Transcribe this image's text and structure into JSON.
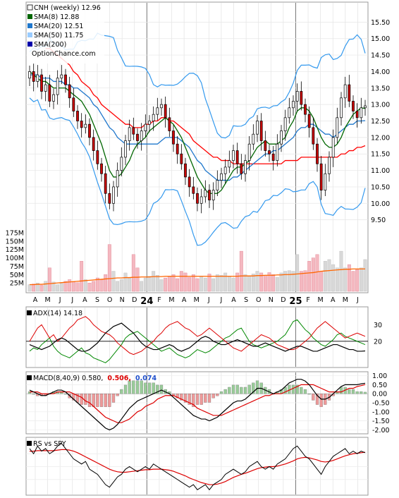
{
  "legend": {
    "symbol": "CNH (weekly) 12.96",
    "sma8": "SMA(8) 12.88",
    "sma20": "SMA(20) 12.51",
    "sma50": "SMA(50) 11.75",
    "sma200": "SMA(200)",
    "site": "OptionChance.com"
  },
  "adx_label": "ADX(14) 14.18",
  "macd_label": "MACD(8,40,9) 0.580,",
  "macd_val1": "0.506,",
  "macd_val2": "0.074",
  "rs_label": "RS vs SPY",
  "colors": {
    "up": "#ffffff",
    "down": "#cc0000",
    "sma8": "#006600",
    "sma20": "#1f77cc",
    "sma50": "#ff0000",
    "bband": "#3399ee",
    "ma_vol": "#ff6600",
    "vol_up": "#d8d8d8",
    "vol_down": "#f4b8c0",
    "adx": "#000000",
    "pdi": "#008800",
    "mdi": "#dd0000",
    "macd": "#000000",
    "signal": "#dd0000",
    "hist_pos": "#99cc99",
    "hist_neg": "#ee9999",
    "rs": "#000000",
    "rs_ma": "#dd0000",
    "label_red": "#dd0000",
    "label_blue": "#1f4fcc"
  },
  "chart_data": [
    {
      "type": "candlestick",
      "title": "CNH (weekly) 12.96",
      "ylim": [
        9.0,
        16.0
      ],
      "y_ticks": [
        "15.50",
        "15.00",
        "14.50",
        "14.00",
        "13.50",
        "13.00",
        "12.50",
        "12.00",
        "11.50",
        "11.00",
        "10.50",
        "10.00",
        "9.50"
      ],
      "x_tick_labels": [
        "A",
        "M",
        "J",
        "J",
        "A",
        "S",
        "O",
        "N",
        "D",
        "24",
        "F",
        "M",
        "A",
        "M",
        "J",
        "J",
        "A",
        "S",
        "O",
        "N",
        "D",
        "25",
        "F",
        "M",
        "A",
        "M",
        "J"
      ],
      "close": [
        14.0,
        13.7,
        13.9,
        13.4,
        13.6,
        13.1,
        13.3,
        13.8,
        13.9,
        13.6,
        13.2,
        12.8,
        12.5,
        12.3,
        12.4,
        12.0,
        11.6,
        11.2,
        10.9,
        10.3,
        10.0,
        10.5,
        11.0,
        11.4,
        11.9,
        12.3,
        12.1,
        11.9,
        12.2,
        12.4,
        12.5,
        12.7,
        12.9,
        13.0,
        12.6,
        12.2,
        11.8,
        11.5,
        11.2,
        10.8,
        10.5,
        10.3,
        10.0,
        10.2,
        10.4,
        10.1,
        10.4,
        10.7,
        10.9,
        11.1,
        11.3,
        11.6,
        11.2,
        10.9,
        11.3,
        11.8,
        12.1,
        12.5,
        11.9,
        11.6,
        11.5,
        11.3,
        11.8,
        12.2,
        12.6,
        12.9,
        13.1,
        13.4,
        13.0,
        12.7,
        12.3,
        11.8,
        11.2,
        10.4,
        10.9,
        11.4,
        12.0,
        12.6,
        13.2,
        13.6,
        13.1,
        12.8,
        12.6,
        12.9,
        12.96
      ],
      "sma8": [
        14.0,
        13.9,
        13.8,
        13.7,
        13.7,
        13.6,
        13.5,
        13.5,
        13.5,
        13.5,
        13.4,
        13.3,
        13.2,
        13.1,
        12.9,
        12.7,
        12.4,
        12.1,
        11.8,
        11.4,
        11.0,
        10.8,
        10.8,
        10.9,
        11.1,
        11.3,
        11.6,
        11.8,
        11.9,
        12.0,
        12.2,
        12.3,
        12.4,
        12.5,
        12.6,
        12.5,
        12.4,
        12.2,
        12.0,
        11.7,
        11.4,
        11.1,
        10.8,
        10.6,
        10.4,
        10.3,
        10.3,
        10.3,
        10.4,
        10.6,
        10.8,
        11.0,
        11.1,
        11.1,
        11.2,
        11.3,
        11.5,
        11.7,
        11.8,
        11.9,
        11.8,
        11.8,
        11.8,
        11.9,
        12.0,
        12.3,
        12.5,
        12.8,
        12.9,
        12.9,
        12.8,
        12.6,
        12.3,
        12.0,
        11.8,
        11.7,
        11.7,
        11.8,
        12.0,
        12.3,
        12.5,
        12.7,
        12.8,
        12.9,
        12.88
      ],
      "sma20": [
        13.9,
        13.9,
        13.9,
        13.8,
        13.8,
        13.8,
        13.7,
        13.7,
        13.7,
        13.6,
        13.6,
        13.5,
        13.5,
        13.4,
        13.3,
        13.2,
        13.0,
        12.9,
        12.7,
        12.5,
        12.3,
        12.2,
        12.0,
        11.9,
        11.8,
        11.8,
        11.8,
        11.8,
        11.8,
        11.8,
        11.8,
        11.8,
        11.8,
        11.9,
        12.0,
        12.0,
        12.0,
        12.0,
        11.9,
        11.8,
        11.7,
        11.5,
        11.3,
        11.2,
        11.0,
        10.9,
        10.8,
        10.7,
        10.7,
        10.7,
        10.7,
        10.8,
        10.8,
        10.9,
        11.0,
        11.1,
        11.2,
        11.3,
        11.4,
        11.5,
        11.5,
        11.6,
        11.6,
        11.7,
        11.8,
        11.9,
        12.0,
        12.2,
        12.3,
        12.3,
        12.4,
        12.4,
        12.3,
        12.2,
        12.1,
        12.1,
        12.0,
        12.1,
        12.2,
        12.3,
        12.4,
        12.4,
        12.5,
        12.5,
        12.51
      ],
      "sma50": [
        null,
        null,
        null,
        null,
        14.7,
        14.7,
        14.6,
        14.5,
        14.4,
        14.3,
        14.2,
        14.0,
        13.9,
        13.7,
        13.6,
        13.5,
        13.3,
        13.2,
        13.0,
        12.9,
        12.8,
        12.7,
        12.6,
        12.5,
        12.4,
        12.4,
        12.3,
        12.3,
        12.3,
        12.4,
        12.4,
        12.5,
        12.5,
        12.6,
        12.6,
        12.5,
        12.5,
        12.4,
        12.3,
        12.2,
        12.1,
        11.9,
        11.8,
        11.7,
        11.6,
        11.5,
        11.4,
        11.4,
        11.3,
        11.3,
        11.3,
        11.2,
        11.2,
        11.2,
        11.2,
        11.2,
        11.2,
        11.2,
        11.2,
        11.2,
        11.2,
        11.2,
        11.2,
        11.2,
        11.3,
        11.3,
        11.3,
        11.3,
        11.4,
        11.4,
        11.4,
        11.4,
        11.4,
        11.4,
        11.4,
        11.4,
        11.4,
        11.4,
        11.5,
        11.5,
        11.6,
        11.6,
        11.7,
        11.7,
        11.75
      ]
    },
    {
      "type": "bar",
      "title": "Volume",
      "ylim": [
        0,
        175
      ],
      "y_ticks": [
        "175M",
        "150M",
        "125M",
        "100M",
        "75M",
        "50M",
        "25M"
      ],
      "volume": [
        20,
        22,
        25,
        18,
        30,
        70,
        28,
        20,
        24,
        30,
        35,
        28,
        26,
        90,
        35,
        25,
        30,
        40,
        35,
        50,
        140,
        60,
        30,
        35,
        55,
        40,
        110,
        70,
        30,
        40,
        45,
        60,
        48,
        35,
        40,
        45,
        50,
        38,
        60,
        55,
        42,
        50,
        38,
        45,
        40,
        52,
        38,
        50,
        48,
        55,
        46,
        40,
        55,
        120,
        50,
        45,
        52,
        60,
        55,
        48,
        56,
        50,
        42,
        55,
        60,
        62,
        60,
        110,
        60,
        62,
        90,
        100,
        110,
        60,
        90,
        95,
        80,
        70,
        120,
        70,
        80,
        60,
        65,
        70,
        95
      ],
      "ma_volume": [
        20,
        20,
        21,
        21,
        22,
        23,
        24,
        25,
        26,
        27,
        28,
        29,
        30,
        31,
        32,
        33,
        34,
        35,
        36,
        37,
        38,
        39,
        40,
        40,
        41,
        41,
        42,
        42,
        43,
        43,
        43,
        44,
        44,
        44,
        45,
        45,
        45,
        45,
        45,
        45,
        45,
        45,
        45,
        45,
        45,
        45,
        45,
        45,
        45,
        45,
        45,
        45,
        45,
        46,
        46,
        46,
        46,
        47,
        47,
        48,
        48,
        48,
        49,
        49,
        50,
        50,
        51,
        52,
        53,
        54,
        55,
        56,
        58,
        60,
        61,
        62,
        63,
        64,
        65,
        66,
        66,
        67,
        67,
        67,
        67
      ]
    },
    {
      "type": "line",
      "title": "ADX(14) 14.18",
      "ylim": [
        5,
        40
      ],
      "y_ticks": [
        "30",
        "20"
      ],
      "adx": [
        18,
        17,
        16,
        15,
        16,
        17,
        19,
        21,
        22,
        21,
        19,
        17,
        15,
        14,
        14,
        15,
        17,
        19,
        22,
        25,
        27,
        29,
        30,
        31,
        29,
        27,
        25,
        22,
        19,
        17,
        16,
        15,
        15,
        16,
        17,
        18,
        17,
        15,
        14,
        15,
        16,
        18,
        20,
        22,
        23,
        22,
        20,
        19,
        18,
        18,
        19,
        20,
        21,
        20,
        19,
        18,
        17,
        17,
        18,
        19,
        18,
        17,
        16,
        15,
        14,
        15,
        16,
        17,
        17,
        16,
        15,
        14,
        14,
        15,
        16,
        17,
        18,
        18,
        17,
        16,
        15,
        15,
        14,
        14,
        14.18
      ],
      "pdi": [
        14,
        16,
        15,
        18,
        20,
        22,
        17,
        14,
        12,
        11,
        10,
        12,
        14,
        16,
        13,
        12,
        10,
        9,
        8,
        7,
        9,
        12,
        15,
        18,
        22,
        24,
        25,
        26,
        24,
        22,
        20,
        18,
        16,
        14,
        15,
        16,
        14,
        12,
        11,
        10,
        11,
        13,
        15,
        14,
        13,
        14,
        16,
        18,
        20,
        22,
        23,
        25,
        27,
        28,
        24,
        20,
        18,
        17,
        16,
        17,
        18,
        19,
        20,
        22,
        24,
        28,
        32,
        33,
        30,
        27,
        25,
        22,
        20,
        18,
        17,
        19,
        21,
        24,
        25,
        23,
        22,
        21,
        20,
        19,
        18
      ],
      "mdi": [
        20,
        24,
        28,
        30,
        26,
        22,
        24,
        20,
        22,
        25,
        28,
        30,
        33,
        34,
        35,
        33,
        30,
        28,
        26,
        25,
        24,
        22,
        19,
        17,
        15,
        13,
        12,
        13,
        14,
        16,
        18,
        20,
        23,
        25,
        28,
        30,
        31,
        32,
        30,
        28,
        27,
        25,
        23,
        24,
        26,
        28,
        26,
        24,
        22,
        20,
        18,
        16,
        15,
        14,
        16,
        18,
        20,
        22,
        24,
        23,
        22,
        20,
        18,
        17,
        16,
        15,
        15,
        16,
        18,
        20,
        22,
        25,
        28,
        30,
        32,
        30,
        28,
        26,
        24,
        22,
        23,
        24,
        25,
        24,
        23
      ]
    },
    {
      "type": "line",
      "title": "MACD(8,40,9) 0.580,",
      "ylim": [
        -2.1,
        1.1
      ],
      "y_ticks": [
        "1.00",
        "0.50",
        "0.00",
        "-0.50",
        "-1.00",
        "-1.50",
        "-2.00"
      ],
      "macd": [
        0.2,
        0.1,
        0.0,
        -0.1,
        -0.1,
        0.0,
        0.1,
        0.2,
        0.2,
        0.1,
        -0.1,
        -0.3,
        -0.5,
        -0.7,
        -0.9,
        -1.1,
        -1.3,
        -1.5,
        -1.7,
        -1.9,
        -2.0,
        -1.9,
        -1.7,
        -1.4,
        -1.1,
        -0.8,
        -0.6,
        -0.4,
        -0.3,
        -0.2,
        -0.1,
        0.0,
        0.1,
        0.2,
        0.1,
        0.0,
        -0.2,
        -0.4,
        -0.6,
        -0.8,
        -1.0,
        -1.2,
        -1.3,
        -1.4,
        -1.4,
        -1.5,
        -1.4,
        -1.3,
        -1.1,
        -0.9,
        -0.7,
        -0.5,
        -0.4,
        -0.4,
        -0.3,
        -0.1,
        0.1,
        0.3,
        0.3,
        0.2,
        0.1,
        0.0,
        0.1,
        0.2,
        0.4,
        0.6,
        0.7,
        0.8,
        0.8,
        0.7,
        0.5,
        0.2,
        -0.1,
        -0.3,
        -0.3,
        -0.2,
        0.0,
        0.2,
        0.4,
        0.5,
        0.5,
        0.5,
        0.5,
        0.55,
        0.58
      ],
      "signal": [
        0.1,
        0.1,
        0.1,
        0.0,
        0.0,
        0.0,
        0.0,
        0.1,
        0.1,
        0.1,
        0.1,
        0.0,
        -0.1,
        -0.2,
        -0.4,
        -0.5,
        -0.7,
        -0.9,
        -1.1,
        -1.3,
        -1.4,
        -1.5,
        -1.6,
        -1.6,
        -1.5,
        -1.4,
        -1.2,
        -1.0,
        -0.9,
        -0.7,
        -0.6,
        -0.5,
        -0.3,
        -0.2,
        -0.1,
        -0.1,
        -0.1,
        -0.2,
        -0.3,
        -0.4,
        -0.5,
        -0.6,
        -0.8,
        -0.9,
        -1.0,
        -1.1,
        -1.2,
        -1.2,
        -1.2,
        -1.1,
        -1.0,
        -0.9,
        -0.8,
        -0.7,
        -0.6,
        -0.5,
        -0.4,
        -0.3,
        -0.2,
        -0.1,
        -0.1,
        0.0,
        0.0,
        0.0,
        0.1,
        0.2,
        0.3,
        0.4,
        0.5,
        0.5,
        0.5,
        0.5,
        0.4,
        0.3,
        0.2,
        0.1,
        0.1,
        0.1,
        0.1,
        0.2,
        0.3,
        0.3,
        0.4,
        0.45,
        0.506
      ]
    },
    {
      "type": "line",
      "title": "RS vs SPY",
      "rs": [
        0.9,
        0.8,
        0.95,
        0.85,
        0.9,
        0.8,
        0.85,
        0.95,
        1.0,
        0.9,
        0.8,
        0.7,
        0.65,
        0.6,
        0.65,
        0.5,
        0.45,
        0.4,
        0.3,
        0.2,
        0.15,
        0.25,
        0.35,
        0.4,
        0.5,
        0.55,
        0.5,
        0.45,
        0.5,
        0.55,
        0.5,
        0.6,
        0.55,
        0.5,
        0.45,
        0.4,
        0.35,
        0.3,
        0.25,
        0.2,
        0.15,
        0.2,
        0.1,
        0.15,
        0.2,
        0.1,
        0.2,
        0.25,
        0.3,
        0.4,
        0.45,
        0.5,
        0.45,
        0.4,
        0.45,
        0.55,
        0.6,
        0.65,
        0.55,
        0.5,
        0.55,
        0.5,
        0.6,
        0.65,
        0.7,
        0.8,
        0.9,
        0.95,
        0.85,
        0.75,
        0.7,
        0.6,
        0.5,
        0.4,
        0.55,
        0.65,
        0.75,
        0.8,
        0.85,
        0.9,
        0.8,
        0.85,
        0.8,
        0.85,
        0.82
      ],
      "rs_ma": [
        0.85,
        0.85,
        0.86,
        0.86,
        0.86,
        0.86,
        0.86,
        0.87,
        0.88,
        0.88,
        0.87,
        0.85,
        0.82,
        0.78,
        0.74,
        0.7,
        0.66,
        0.62,
        0.58,
        0.54,
        0.5,
        0.47,
        0.45,
        0.44,
        0.44,
        0.45,
        0.46,
        0.47,
        0.48,
        0.49,
        0.49,
        0.5,
        0.5,
        0.5,
        0.49,
        0.48,
        0.46,
        0.43,
        0.4,
        0.37,
        0.33,
        0.3,
        0.27,
        0.24,
        0.22,
        0.2,
        0.2,
        0.21,
        0.23,
        0.26,
        0.3,
        0.34,
        0.37,
        0.4,
        0.42,
        0.45,
        0.48,
        0.51,
        0.53,
        0.54,
        0.55,
        0.55,
        0.56,
        0.58,
        0.6,
        0.63,
        0.66,
        0.7,
        0.72,
        0.73,
        0.72,
        0.7,
        0.68,
        0.65,
        0.64,
        0.65,
        0.67,
        0.7,
        0.73,
        0.76,
        0.78,
        0.8,
        0.81,
        0.82,
        0.83
      ]
    }
  ]
}
